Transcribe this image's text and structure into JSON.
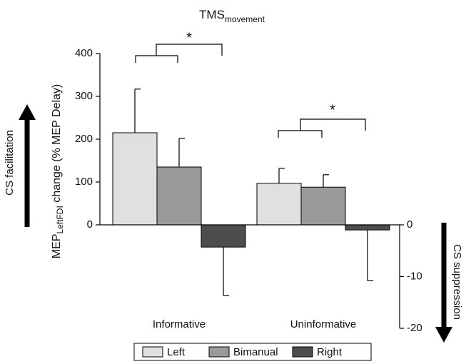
{
  "chart_data": {
    "type": "bar",
    "title": {
      "main": "TMS",
      "sub": "movement"
    },
    "y_label": {
      "main": "MEP",
      "sub": "LeftFDI",
      "rest": " change (% MEP Delay)"
    },
    "y2_label": "CS suppression",
    "annotations": [
      "CS facilitation",
      "*",
      "*"
    ],
    "categories": [
      "Informative",
      "Uninformative"
    ],
    "series": [
      {
        "name": "Left",
        "color": "#e0e0e0",
        "values": [
          215,
          97
        ],
        "errors": [
          102,
          35
        ]
      },
      {
        "name": "Bimanual",
        "color": "#9a9a9a",
        "values": [
          135,
          88
        ],
        "errors": [
          67,
          29
        ]
      },
      {
        "name": "Right",
        "color": "#4d4d4d",
        "axis": "y2",
        "values": [
          -4.3,
          -1
        ],
        "errors": [
          9.4,
          9.8
        ]
      }
    ],
    "ylim": [
      0,
      400
    ],
    "yticks": [
      0,
      100,
      200,
      300,
      400
    ],
    "y2lim": [
      -20,
      0
    ],
    "y2ticks": [
      0,
      -10,
      -20
    ],
    "legend": "bottom"
  }
}
